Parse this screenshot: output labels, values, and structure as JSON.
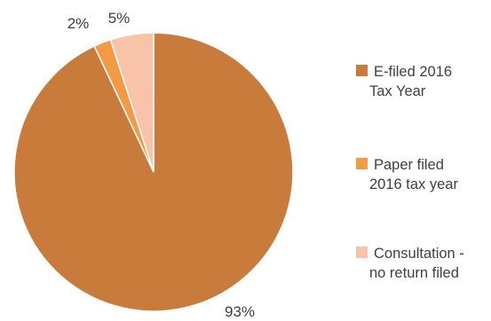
{
  "chart_data": {
    "type": "pie",
    "slices": [
      {
        "name_lines": [
          "E-filed 2016",
          "Tax Year"
        ],
        "value": 93,
        "label": "93%",
        "color": "#c97b3c"
      },
      {
        "name_lines": [
          "Paper filed",
          "2016 tax year"
        ],
        "value": 2,
        "label": "2%",
        "color": "#f39a45"
      },
      {
        "name_lines": [
          "Consultation -",
          "no return filed"
        ],
        "value": 5,
        "label": "5%",
        "color": "#f9c3a9"
      }
    ],
    "legend_position": "right"
  }
}
